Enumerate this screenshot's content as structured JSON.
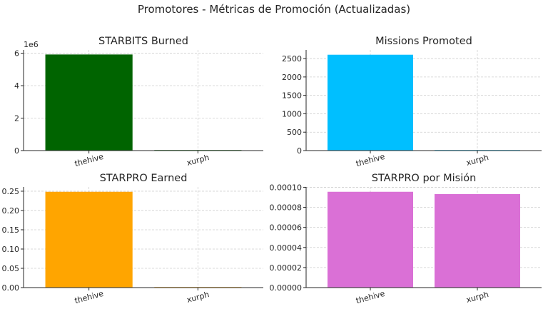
{
  "figure": {
    "title": "Promotores - Métricas de Promoción (Actualizadas)"
  },
  "chart_data": [
    {
      "type": "bar",
      "title": "STARBITS Burned",
      "categories": [
        "thehive",
        "xurph"
      ],
      "values": [
        5920000,
        20000
      ],
      "color": "#006400",
      "ylim": [
        0,
        6200000
      ],
      "yticks": [
        0,
        2000000,
        4000000,
        6000000
      ],
      "ytick_labels": [
        "0",
        "2",
        "4",
        "6"
      ],
      "offset_label": "1e6",
      "grid": true
    },
    {
      "type": "bar",
      "title": "Missions Promoted",
      "categories": [
        "thehive",
        "xurph"
      ],
      "values": [
        2604,
        5
      ],
      "color": "#00BFFF",
      "ylim": [
        0,
        2734
      ],
      "yticks": [
        0,
        500,
        1000,
        1500,
        2000,
        2500
      ],
      "ytick_labels": [
        "0",
        "500",
        "1000",
        "1500",
        "2000",
        "2500"
      ],
      "grid": true
    },
    {
      "type": "bar",
      "title": "STARPRO Earned",
      "categories": [
        "thehive",
        "xurph"
      ],
      "values": [
        0.2485,
        0.0005
      ],
      "color": "#FFA500",
      "ylim": [
        0,
        0.261
      ],
      "yticks": [
        0,
        0.05,
        0.1,
        0.15,
        0.2,
        0.25
      ],
      "ytick_labels": [
        "0.00",
        "0.05",
        "0.10",
        "0.15",
        "0.20",
        "0.25"
      ],
      "grid": true
    },
    {
      "type": "bar",
      "title": "STARPRO por Misión",
      "categories": [
        "thehive",
        "xurph"
      ],
      "values": [
        9.55e-05,
        9.32e-05
      ],
      "color": "#DA70D6",
      "ylim": [
        0,
        0.0001003
      ],
      "yticks": [
        0,
        2e-05,
        4e-05,
        6e-05,
        8e-05,
        0.0001
      ],
      "ytick_labels": [
        "0.00000",
        "0.00002",
        "0.00004",
        "0.00006",
        "0.00008",
        "0.00010"
      ],
      "grid": true
    }
  ]
}
